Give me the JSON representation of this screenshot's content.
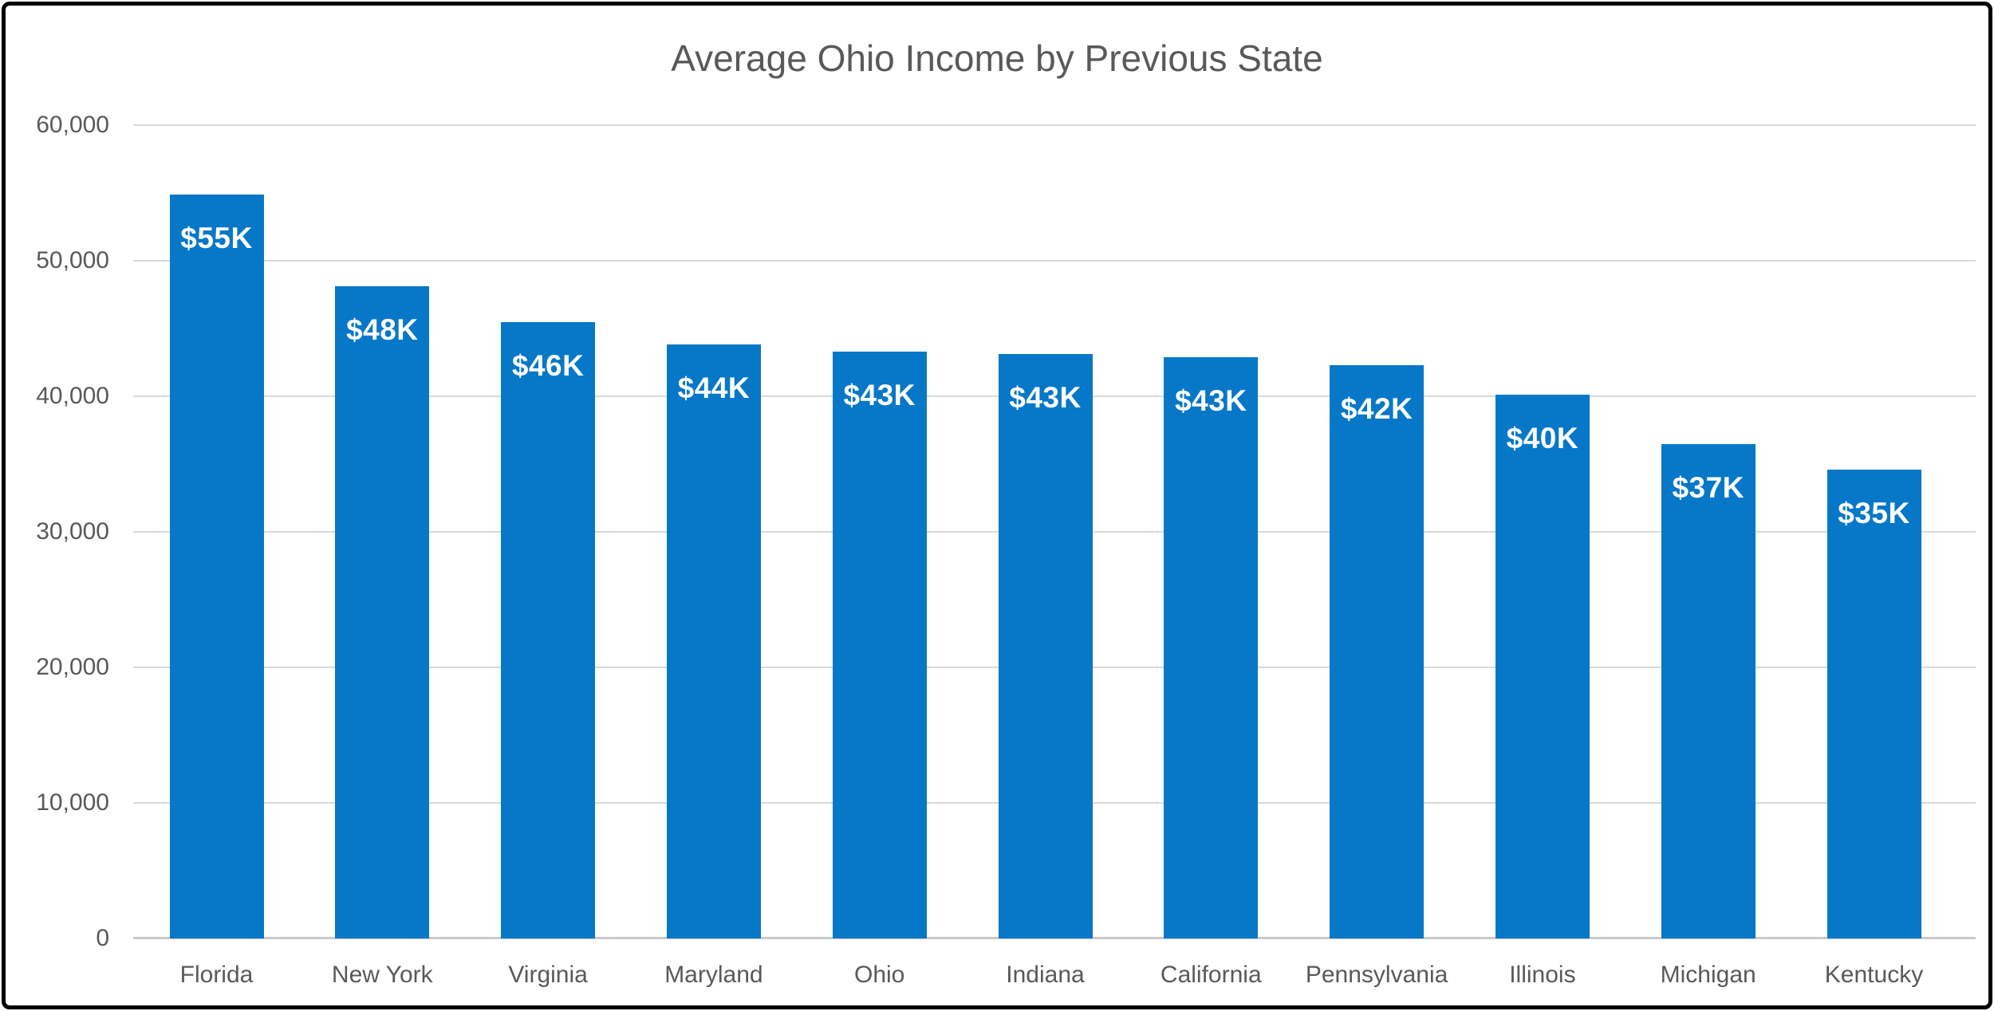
{
  "chart_data": {
    "type": "bar",
    "title": "Average Ohio Income by Previous State",
    "categories": [
      "Florida",
      "New York",
      "Virginia",
      "Maryland",
      "Ohio",
      "Indiana",
      "California",
      "Pennsylvania",
      "Illinois",
      "Michigan",
      "Kentucky"
    ],
    "values": [
      54900,
      48100,
      45500,
      43800,
      43300,
      43100,
      42900,
      42300,
      40100,
      36500,
      34600
    ],
    "bar_labels": [
      "$55K",
      "$48K",
      "$46K",
      "$44K",
      "$43K",
      "$43K",
      "$43K",
      "$42K",
      "$40K",
      "$37K",
      "$35K"
    ],
    "xlabel": "",
    "ylabel": "",
    "ylim": [
      0,
      60000
    ],
    "ytick_values": [
      60000,
      50000,
      40000,
      30000,
      20000,
      10000,
      0
    ],
    "ytick_labels": [
      "60,000",
      "50,000",
      "40,000",
      "30,000",
      "20,000",
      "10,000",
      "0"
    ],
    "grid": true,
    "legend": "none",
    "colors": {
      "bar": "#0778c8",
      "bar_label_text": "#ffffff",
      "title_text": "#595959",
      "axis_text": "#595959",
      "gridline": "#d9d9d9",
      "axis_line": "#c9c9c9",
      "frame_border": "#000000",
      "background": "#ffffff"
    }
  }
}
